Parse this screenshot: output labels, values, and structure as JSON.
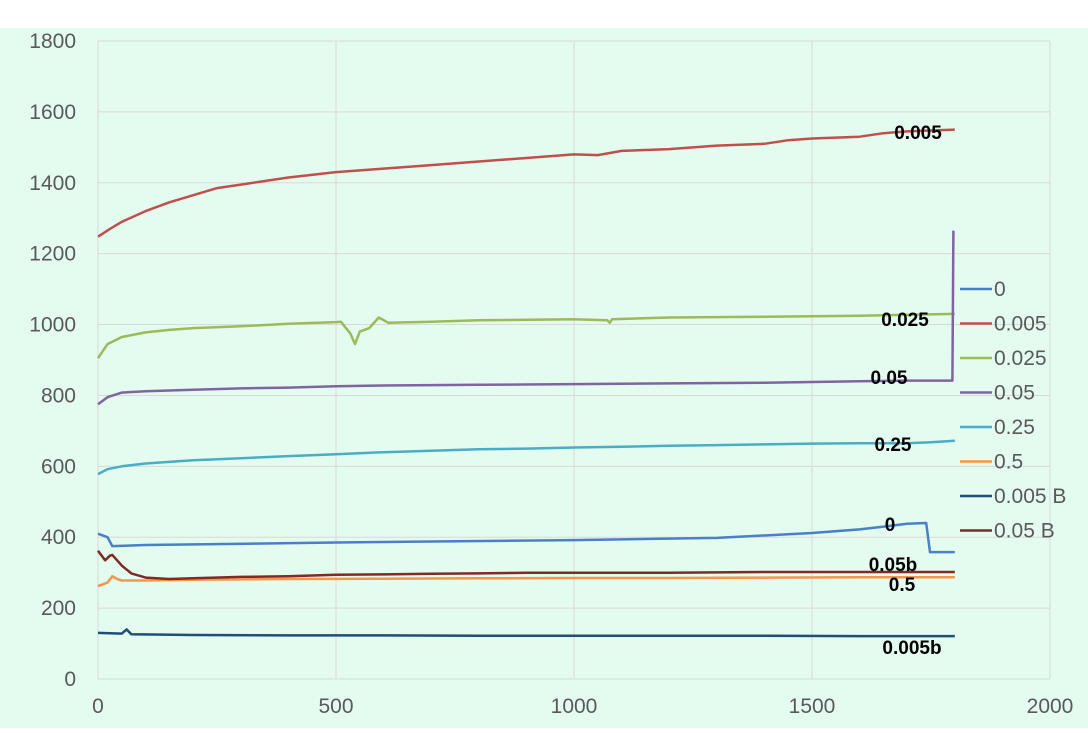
{
  "chart_data": {
    "type": "line",
    "xlim": [
      0,
      2000
    ],
    "ylim": [
      0,
      1800
    ],
    "x_ticks": [
      "0",
      "500",
      "1000",
      "1500",
      "2000"
    ],
    "y_ticks": [
      "0",
      "200",
      "400",
      "600",
      "800",
      "1000",
      "1200",
      "1400",
      "1600",
      "1800"
    ],
    "grid": true,
    "legend_position": "right",
    "plot_background": "#e4fbef",
    "series": [
      {
        "name": "0",
        "label": "0",
        "color": "#4a7fc9",
        "points": [
          [
            0,
            410
          ],
          [
            20,
            400
          ],
          [
            30,
            375
          ],
          [
            100,
            378
          ],
          [
            500,
            385
          ],
          [
            1000,
            392
          ],
          [
            1300,
            398
          ],
          [
            1500,
            412
          ],
          [
            1600,
            422
          ],
          [
            1700,
            438
          ],
          [
            1740,
            440
          ],
          [
            1748,
            358
          ],
          [
            1800,
            358
          ]
        ]
      },
      {
        "name": "0.005",
        "label": "0.005",
        "color": "#c0504d",
        "points": [
          [
            0,
            1248
          ],
          [
            25,
            1270
          ],
          [
            50,
            1290
          ],
          [
            100,
            1320
          ],
          [
            150,
            1345
          ],
          [
            200,
            1365
          ],
          [
            250,
            1385
          ],
          [
            300,
            1395
          ],
          [
            400,
            1415
          ],
          [
            500,
            1430
          ],
          [
            600,
            1440
          ],
          [
            700,
            1450
          ],
          [
            800,
            1460
          ],
          [
            900,
            1470
          ],
          [
            1000,
            1480
          ],
          [
            1050,
            1478
          ],
          [
            1100,
            1490
          ],
          [
            1200,
            1495
          ],
          [
            1300,
            1505
          ],
          [
            1400,
            1510
          ],
          [
            1450,
            1520
          ],
          [
            1500,
            1525
          ],
          [
            1600,
            1530
          ],
          [
            1650,
            1540
          ],
          [
            1700,
            1545
          ],
          [
            1800,
            1550
          ]
        ]
      },
      {
        "name": "0.025",
        "label": "0.025",
        "color": "#9bbb59",
        "points": [
          [
            0,
            905
          ],
          [
            20,
            945
          ],
          [
            50,
            965
          ],
          [
            100,
            978
          ],
          [
            150,
            985
          ],
          [
            200,
            990
          ],
          [
            300,
            995
          ],
          [
            400,
            1002
          ],
          [
            500,
            1007
          ],
          [
            510,
            1008
          ],
          [
            530,
            975
          ],
          [
            540,
            945
          ],
          [
            550,
            980
          ],
          [
            570,
            990
          ],
          [
            590,
            1020
          ],
          [
            610,
            1005
          ],
          [
            700,
            1008
          ],
          [
            800,
            1012
          ],
          [
            1000,
            1015
          ],
          [
            1070,
            1012
          ],
          [
            1075,
            1005
          ],
          [
            1080,
            1015
          ],
          [
            1200,
            1020
          ],
          [
            1400,
            1022
          ],
          [
            1600,
            1025
          ],
          [
            1800,
            1030
          ]
        ]
      },
      {
        "name": "0.05",
        "label": "0.05",
        "color": "#8064a2",
        "points": [
          [
            0,
            775
          ],
          [
            20,
            795
          ],
          [
            50,
            808
          ],
          [
            100,
            812
          ],
          [
            200,
            816
          ],
          [
            300,
            820
          ],
          [
            400,
            822
          ],
          [
            500,
            826
          ],
          [
            600,
            828
          ],
          [
            800,
            830
          ],
          [
            1000,
            832
          ],
          [
            1200,
            834
          ],
          [
            1400,
            836
          ],
          [
            1500,
            838
          ],
          [
            1600,
            840
          ],
          [
            1700,
            842
          ],
          [
            1795,
            842
          ],
          [
            1797,
            1265
          ]
        ]
      },
      {
        "name": "0.25",
        "label": "0.25",
        "color": "#4bacc6",
        "points": [
          [
            0,
            578
          ],
          [
            20,
            592
          ],
          [
            50,
            600
          ],
          [
            100,
            608
          ],
          [
            200,
            617
          ],
          [
            300,
            623
          ],
          [
            400,
            629
          ],
          [
            500,
            634
          ],
          [
            600,
            640
          ],
          [
            700,
            644
          ],
          [
            800,
            648
          ],
          [
            900,
            650
          ],
          [
            1000,
            653
          ],
          [
            1100,
            655
          ],
          [
            1200,
            658
          ],
          [
            1300,
            660
          ],
          [
            1400,
            662
          ],
          [
            1500,
            664
          ],
          [
            1600,
            665
          ],
          [
            1700,
            665
          ],
          [
            1750,
            668
          ],
          [
            1800,
            672
          ]
        ]
      },
      {
        "name": "0.5",
        "label": "0.5",
        "color": "#f79646",
        "points": [
          [
            0,
            262
          ],
          [
            20,
            272
          ],
          [
            30,
            290
          ],
          [
            40,
            282
          ],
          [
            50,
            278
          ],
          [
            100,
            278
          ],
          [
            200,
            280
          ],
          [
            400,
            282
          ],
          [
            600,
            283
          ],
          [
            800,
            284
          ],
          [
            1000,
            285
          ],
          [
            1200,
            285
          ],
          [
            1400,
            286
          ],
          [
            1600,
            287
          ],
          [
            1800,
            287
          ]
        ]
      },
      {
        "name": "0.005 B",
        "label": "0.005b",
        "color": "#1f4e79",
        "points": [
          [
            0,
            130
          ],
          [
            50,
            128
          ],
          [
            60,
            140
          ],
          [
            70,
            126
          ],
          [
            200,
            124
          ],
          [
            400,
            123
          ],
          [
            600,
            123
          ],
          [
            800,
            122
          ],
          [
            1000,
            122
          ],
          [
            1200,
            122
          ],
          [
            1400,
            122
          ],
          [
            1600,
            121
          ],
          [
            1800,
            121
          ]
        ]
      },
      {
        "name": "0.05 B",
        "label": "0.05b",
        "color": "#7f2a24",
        "points": [
          [
            0,
            362
          ],
          [
            15,
            335
          ],
          [
            25,
            348
          ],
          [
            30,
            350
          ],
          [
            50,
            320
          ],
          [
            70,
            298
          ],
          [
            100,
            286
          ],
          [
            150,
            282
          ],
          [
            200,
            284
          ],
          [
            300,
            288
          ],
          [
            400,
            290
          ],
          [
            500,
            294
          ],
          [
            600,
            295
          ],
          [
            700,
            297
          ],
          [
            800,
            298
          ],
          [
            900,
            300
          ],
          [
            1000,
            300
          ],
          [
            1200,
            300
          ],
          [
            1400,
            302
          ],
          [
            1600,
            302
          ],
          [
            1800,
            302
          ]
        ]
      }
    ]
  }
}
